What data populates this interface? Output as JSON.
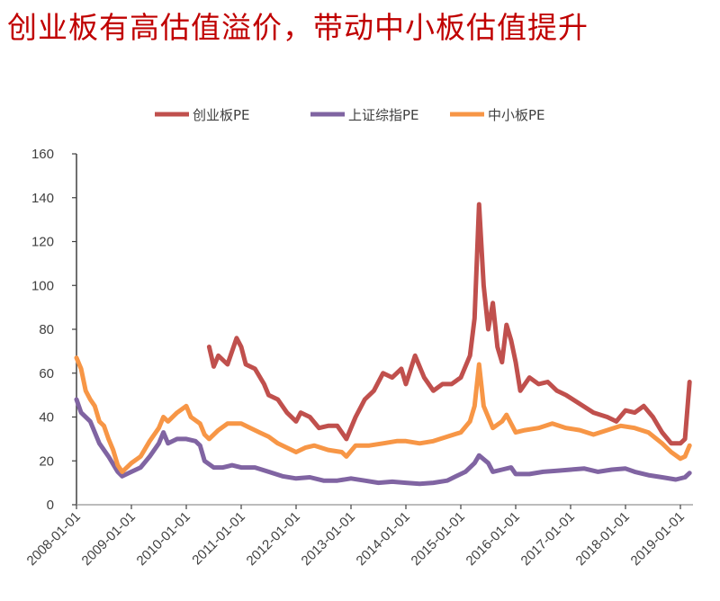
{
  "title": "创业板有高估值溢价，带动中小板估值提升",
  "chart_data": {
    "type": "line",
    "title": "创业板有高估值溢价，带动中小板估值提升",
    "xlabel": "",
    "ylabel": "",
    "ylim": [
      0,
      160
    ],
    "yticks": [
      "0",
      "20",
      "40",
      "60",
      "80",
      "100",
      "120",
      "140",
      "160"
    ],
    "xticks": [
      "2008-01-01",
      "2009-01-01",
      "2010-01-01",
      "2011-01-01",
      "2012-01-01",
      "2013-01-01",
      "2014-01-01",
      "2015-01-01",
      "2016-01-01",
      "2017-01-01",
      "2018-01-01",
      "2019-01-01"
    ],
    "grid": false,
    "legend": "top",
    "series": [
      {
        "name": "创业板PE",
        "color": "#c0504d",
        "points": [
          [
            "2010-06",
            72
          ],
          [
            "2010-07",
            63
          ],
          [
            "2010-08",
            68
          ],
          [
            "2010-10",
            64
          ],
          [
            "2010-12",
            76
          ],
          [
            "2011-01",
            72
          ],
          [
            "2011-02",
            64
          ],
          [
            "2011-04",
            62
          ],
          [
            "2011-06",
            55
          ],
          [
            "2011-07",
            50
          ],
          [
            "2011-09",
            48
          ],
          [
            "2011-11",
            42
          ],
          [
            "2012-01",
            38
          ],
          [
            "2012-02",
            42
          ],
          [
            "2012-04",
            40
          ],
          [
            "2012-06",
            35
          ],
          [
            "2012-08",
            36
          ],
          [
            "2012-10",
            36
          ],
          [
            "2012-12",
            30
          ],
          [
            "2013-02",
            40
          ],
          [
            "2013-04",
            48
          ],
          [
            "2013-06",
            52
          ],
          [
            "2013-08",
            60
          ],
          [
            "2013-10",
            58
          ],
          [
            "2013-12",
            62
          ],
          [
            "2014-01",
            55
          ],
          [
            "2014-03",
            68
          ],
          [
            "2014-05",
            58
          ],
          [
            "2014-07",
            52
          ],
          [
            "2014-09",
            55
          ],
          [
            "2014-11",
            55
          ],
          [
            "2015-01",
            58
          ],
          [
            "2015-03",
            68
          ],
          [
            "2015-04",
            85
          ],
          [
            "2015-05",
            137
          ],
          [
            "2015-06",
            100
          ],
          [
            "2015-07",
            80
          ],
          [
            "2015-08",
            92
          ],
          [
            "2015-09",
            72
          ],
          [
            "2015-10",
            65
          ],
          [
            "2015-11",
            82
          ],
          [
            "2015-12",
            75
          ],
          [
            "2016-01",
            65
          ],
          [
            "2016-02",
            52
          ],
          [
            "2016-04",
            58
          ],
          [
            "2016-06",
            55
          ],
          [
            "2016-08",
            56
          ],
          [
            "2016-10",
            52
          ],
          [
            "2016-12",
            50
          ],
          [
            "2017-03",
            46
          ],
          [
            "2017-06",
            42
          ],
          [
            "2017-09",
            40
          ],
          [
            "2017-11",
            38
          ],
          [
            "2018-01",
            43
          ],
          [
            "2018-03",
            42
          ],
          [
            "2018-05",
            45
          ],
          [
            "2018-07",
            40
          ],
          [
            "2018-09",
            33
          ],
          [
            "2018-11",
            28
          ],
          [
            "2019-01",
            28
          ],
          [
            "2019-02",
            30
          ],
          [
            "2019-03",
            56
          ]
        ]
      },
      {
        "name": "上证综指PE",
        "color": "#8064a2",
        "points": [
          [
            "2008-01",
            48
          ],
          [
            "2008-02",
            42
          ],
          [
            "2008-04",
            38
          ],
          [
            "2008-06",
            28
          ],
          [
            "2008-08",
            22
          ],
          [
            "2008-10",
            15
          ],
          [
            "2008-11",
            13
          ],
          [
            "2009-01",
            15
          ],
          [
            "2009-03",
            17
          ],
          [
            "2009-05",
            22
          ],
          [
            "2009-07",
            28
          ],
          [
            "2009-08",
            33
          ],
          [
            "2009-09",
            28
          ],
          [
            "2009-11",
            30
          ],
          [
            "2010-01",
            30
          ],
          [
            "2010-03",
            29
          ],
          [
            "2010-04",
            27
          ],
          [
            "2010-05",
            20
          ],
          [
            "2010-07",
            17
          ],
          [
            "2010-09",
            17
          ],
          [
            "2010-11",
            18
          ],
          [
            "2011-01",
            17
          ],
          [
            "2011-04",
            17
          ],
          [
            "2011-07",
            15
          ],
          [
            "2011-10",
            13
          ],
          [
            "2012-01",
            12
          ],
          [
            "2012-04",
            12.5
          ],
          [
            "2012-07",
            11
          ],
          [
            "2012-10",
            11
          ],
          [
            "2013-01",
            12
          ],
          [
            "2013-04",
            11
          ],
          [
            "2013-07",
            10
          ],
          [
            "2013-10",
            10.5
          ],
          [
            "2014-01",
            10
          ],
          [
            "2014-04",
            9.5
          ],
          [
            "2014-07",
            10
          ],
          [
            "2014-10",
            11
          ],
          [
            "2014-12",
            13
          ],
          [
            "2015-02",
            15
          ],
          [
            "2015-04",
            19
          ],
          [
            "2015-05",
            22.5
          ],
          [
            "2015-07",
            19
          ],
          [
            "2015-08",
            15
          ],
          [
            "2015-10",
            16
          ],
          [
            "2015-12",
            17
          ],
          [
            "2016-01",
            14
          ],
          [
            "2016-04",
            14
          ],
          [
            "2016-07",
            15
          ],
          [
            "2016-10",
            15.5
          ],
          [
            "2017-01",
            16
          ],
          [
            "2017-04",
            16.5
          ],
          [
            "2017-07",
            15
          ],
          [
            "2017-10",
            16
          ],
          [
            "2018-01",
            16.5
          ],
          [
            "2018-03",
            15
          ],
          [
            "2018-06",
            13.5
          ],
          [
            "2018-09",
            12.5
          ],
          [
            "2018-12",
            11.5
          ],
          [
            "2019-02",
            12.5
          ],
          [
            "2019-03",
            14.5
          ]
        ]
      },
      {
        "name": "中小板PE",
        "color": "#f79646",
        "points": [
          [
            "2008-01",
            67
          ],
          [
            "2008-02",
            62
          ],
          [
            "2008-03",
            52
          ],
          [
            "2008-04",
            48
          ],
          [
            "2008-05",
            45
          ],
          [
            "2008-06",
            38
          ],
          [
            "2008-07",
            36
          ],
          [
            "2008-08",
            30
          ],
          [
            "2008-09",
            25
          ],
          [
            "2008-10",
            18
          ],
          [
            "2008-11",
            15
          ],
          [
            "2009-01",
            19
          ],
          [
            "2009-03",
            22
          ],
          [
            "2009-05",
            29
          ],
          [
            "2009-07",
            35
          ],
          [
            "2009-08",
            40
          ],
          [
            "2009-09",
            38
          ],
          [
            "2009-11",
            42
          ],
          [
            "2010-01",
            45
          ],
          [
            "2010-02",
            40
          ],
          [
            "2010-04",
            37
          ],
          [
            "2010-05",
            32
          ],
          [
            "2010-06",
            30
          ],
          [
            "2010-08",
            34
          ],
          [
            "2010-10",
            37
          ],
          [
            "2011-01",
            37
          ],
          [
            "2011-03",
            35
          ],
          [
            "2011-05",
            33
          ],
          [
            "2011-07",
            31
          ],
          [
            "2011-09",
            28
          ],
          [
            "2011-11",
            26
          ],
          [
            "2012-01",
            24
          ],
          [
            "2012-03",
            26
          ],
          [
            "2012-05",
            27
          ],
          [
            "2012-08",
            25
          ],
          [
            "2012-11",
            24
          ],
          [
            "2012-12",
            22
          ],
          [
            "2013-02",
            27
          ],
          [
            "2013-05",
            27
          ],
          [
            "2013-08",
            28
          ],
          [
            "2013-11",
            29
          ],
          [
            "2014-01",
            29
          ],
          [
            "2014-04",
            28
          ],
          [
            "2014-07",
            29
          ],
          [
            "2014-10",
            31
          ],
          [
            "2015-01",
            33
          ],
          [
            "2015-03",
            38
          ],
          [
            "2015-04",
            45
          ],
          [
            "2015-05",
            64
          ],
          [
            "2015-06",
            45
          ],
          [
            "2015-08",
            35
          ],
          [
            "2015-10",
            38
          ],
          [
            "2015-11",
            41
          ],
          [
            "2016-01",
            33
          ],
          [
            "2016-03",
            34
          ],
          [
            "2016-06",
            35
          ],
          [
            "2016-09",
            37
          ],
          [
            "2016-12",
            35
          ],
          [
            "2017-03",
            34
          ],
          [
            "2017-06",
            32
          ],
          [
            "2017-09",
            34
          ],
          [
            "2017-12",
            36
          ],
          [
            "2018-03",
            35
          ],
          [
            "2018-06",
            33
          ],
          [
            "2018-09",
            28
          ],
          [
            "2018-11",
            24
          ],
          [
            "2019-01",
            21
          ],
          [
            "2019-02",
            22
          ],
          [
            "2019-03",
            27
          ]
        ]
      }
    ]
  }
}
